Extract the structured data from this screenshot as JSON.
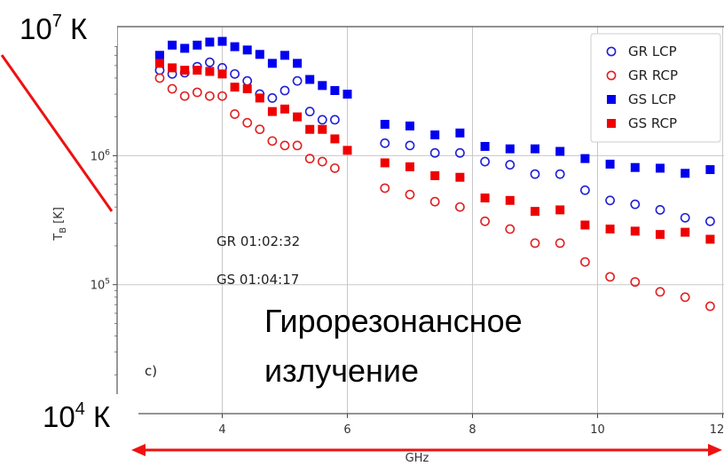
{
  "chart_data": {
    "type": "scatter",
    "xlabel": "GHz",
    "ylabel": "T_B [K]",
    "xlim": [
      2.8,
      12.1
    ],
    "ylim": [
      10000,
      10000000
    ],
    "yscale": "log",
    "grid": true,
    "legend_position": "top-right",
    "x_ticks": [
      "4",
      "6",
      "8",
      "10",
      "12"
    ],
    "y_ticks": [
      "10^5",
      "10^6"
    ],
    "panel_label": "c)",
    "annotations": [
      "GR 01:02:32",
      "GS 01:04:17"
    ],
    "overlay": {
      "top_label": "10^7 К",
      "bottom_label": "10^4 К",
      "caption_line1": "Гирорезонансное",
      "caption_line2": "излучение"
    },
    "series": [
      {
        "name": "GR LCP",
        "marker": "open-circle",
        "color": "#1f1fd6",
        "points": [
          [
            3.0,
            4600000
          ],
          [
            3.2,
            4300000
          ],
          [
            3.4,
            4400000
          ],
          [
            3.6,
            4900000
          ],
          [
            3.8,
            5300000
          ],
          [
            4.0,
            4800000
          ],
          [
            4.2,
            4300000
          ],
          [
            4.4,
            3800000
          ],
          [
            4.6,
            3000000
          ],
          [
            4.8,
            2800000
          ],
          [
            5.0,
            3200000
          ],
          [
            5.2,
            3800000
          ],
          [
            5.4,
            2200000
          ],
          [
            5.6,
            1900000
          ],
          [
            5.8,
            1900000
          ],
          [
            6.6,
            1250000
          ],
          [
            7.0,
            1200000
          ],
          [
            7.4,
            1050000
          ],
          [
            7.8,
            1050000
          ],
          [
            8.2,
            900000
          ],
          [
            8.6,
            850000
          ],
          [
            9.0,
            720000
          ],
          [
            9.4,
            720000
          ],
          [
            9.8,
            540000
          ],
          [
            10.2,
            450000
          ],
          [
            10.6,
            420000
          ],
          [
            11.0,
            380000
          ],
          [
            11.4,
            330000
          ],
          [
            11.8,
            310000
          ]
        ]
      },
      {
        "name": "GR RCP",
        "marker": "open-circle",
        "color": "#e02020",
        "points": [
          [
            3.0,
            4000000
          ],
          [
            3.2,
            3300000
          ],
          [
            3.4,
            2900000
          ],
          [
            3.6,
            3100000
          ],
          [
            3.8,
            2900000
          ],
          [
            4.0,
            2900000
          ],
          [
            4.2,
            2100000
          ],
          [
            4.4,
            1800000
          ],
          [
            4.6,
            1600000
          ],
          [
            4.8,
            1300000
          ],
          [
            5.0,
            1200000
          ],
          [
            5.2,
            1200000
          ],
          [
            5.4,
            950000
          ],
          [
            5.6,
            900000
          ],
          [
            5.8,
            800000
          ],
          [
            6.6,
            560000
          ],
          [
            7.0,
            500000
          ],
          [
            7.4,
            440000
          ],
          [
            7.8,
            400000
          ],
          [
            8.2,
            310000
          ],
          [
            8.6,
            270000
          ],
          [
            9.0,
            210000
          ],
          [
            9.4,
            210000
          ],
          [
            9.8,
            150000
          ],
          [
            10.2,
            115000
          ],
          [
            10.6,
            105000
          ],
          [
            11.0,
            88000
          ],
          [
            11.4,
            80000
          ],
          [
            11.8,
            68000
          ]
        ]
      },
      {
        "name": "GS LCP",
        "marker": "filled-square",
        "color": "#0000ee",
        "points": [
          [
            3.0,
            6000000
          ],
          [
            3.2,
            7200000
          ],
          [
            3.4,
            6800000
          ],
          [
            3.6,
            7200000
          ],
          [
            3.8,
            7600000
          ],
          [
            4.0,
            7700000
          ],
          [
            4.2,
            7000000
          ],
          [
            4.4,
            6600000
          ],
          [
            4.6,
            6100000
          ],
          [
            4.8,
            5200000
          ],
          [
            5.0,
            6000000
          ],
          [
            5.2,
            5200000
          ],
          [
            5.4,
            3900000
          ],
          [
            5.6,
            3500000
          ],
          [
            5.8,
            3200000
          ],
          [
            6.0,
            3000000
          ],
          [
            6.6,
            1750000
          ],
          [
            7.0,
            1700000
          ],
          [
            7.4,
            1450000
          ],
          [
            7.8,
            1500000
          ],
          [
            8.2,
            1180000
          ],
          [
            8.6,
            1130000
          ],
          [
            9.0,
            1130000
          ],
          [
            9.4,
            1080000
          ],
          [
            9.8,
            950000
          ],
          [
            10.2,
            860000
          ],
          [
            10.6,
            810000
          ],
          [
            11.0,
            800000
          ],
          [
            11.4,
            730000
          ],
          [
            11.8,
            780000
          ]
        ]
      },
      {
        "name": "GS RCP",
        "marker": "filled-square",
        "color": "#ee0000",
        "points": [
          [
            3.0,
            5200000
          ],
          [
            3.2,
            4800000
          ],
          [
            3.4,
            4600000
          ],
          [
            3.6,
            4600000
          ],
          [
            3.8,
            4500000
          ],
          [
            4.0,
            4300000
          ],
          [
            4.2,
            3400000
          ],
          [
            4.4,
            3300000
          ],
          [
            4.6,
            2800000
          ],
          [
            4.8,
            2200000
          ],
          [
            5.0,
            2300000
          ],
          [
            5.2,
            2000000
          ],
          [
            5.4,
            1600000
          ],
          [
            5.6,
            1600000
          ],
          [
            5.8,
            1350000
          ],
          [
            6.0,
            1100000
          ],
          [
            6.6,
            880000
          ],
          [
            7.0,
            820000
          ],
          [
            7.4,
            700000
          ],
          [
            7.8,
            680000
          ],
          [
            8.2,
            470000
          ],
          [
            8.6,
            450000
          ],
          [
            9.0,
            370000
          ],
          [
            9.4,
            380000
          ],
          [
            9.8,
            290000
          ],
          [
            10.2,
            270000
          ],
          [
            10.6,
            260000
          ],
          [
            11.0,
            245000
          ],
          [
            11.4,
            255000
          ],
          [
            11.8,
            225000
          ]
        ]
      }
    ]
  }
}
